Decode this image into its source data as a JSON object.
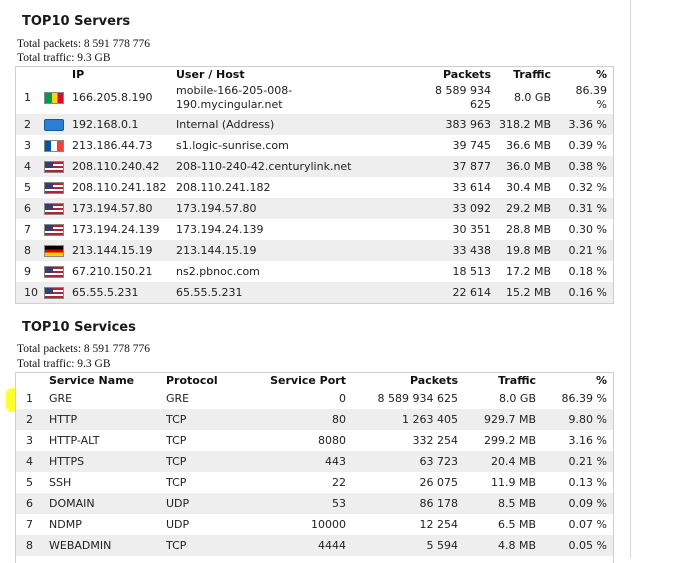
{
  "servers": {
    "title": "TOP10 Servers",
    "total_packets": "Total packets: 8 591 778 776",
    "total_traffic": "Total traffic: 9.3 GB",
    "headers": {
      "ip": "IP",
      "host": "User / Host",
      "packets": "Packets",
      "traffic": "Traffic",
      "pct": "%"
    },
    "rows": [
      {
        "n": "1",
        "flag": "flag-wl",
        "ip": "166.205.8.190",
        "host1": "mobile-166-205-008-",
        "host2": "190.mycingular.net",
        "packets1": "8 589 934",
        "packets2": "625",
        "traffic": "8.0 GB",
        "pct1": "86.39",
        "pct2": "%"
      },
      {
        "n": "2",
        "flag": "flag-lan",
        "ip": "192.168.0.1",
        "host": "Internal (Address)",
        "packets": "383 963",
        "traffic": "318.2 MB",
        "pct": "3.36 %"
      },
      {
        "n": "3",
        "flag": "flag-fr",
        "ip": "213.186.44.73",
        "host": "s1.logic-sunrise.com",
        "packets": "39 745",
        "traffic": "36.6 MB",
        "pct": "0.39 %"
      },
      {
        "n": "4",
        "flag": "flag-us",
        "ip": "208.110.240.42",
        "host": "208-110-240-42.centurylink.net",
        "packets": "37 877",
        "traffic": "36.0 MB",
        "pct": "0.38 %"
      },
      {
        "n": "5",
        "flag": "flag-us",
        "ip": "208.110.241.182",
        "host": "208.110.241.182",
        "packets": "33 614",
        "traffic": "30.4 MB",
        "pct": "0.32 %"
      },
      {
        "n": "6",
        "flag": "flag-us",
        "ip": "173.194.57.80",
        "host": "173.194.57.80",
        "packets": "33 092",
        "traffic": "29.2 MB",
        "pct": "0.31 %"
      },
      {
        "n": "7",
        "flag": "flag-us",
        "ip": "173.194.24.139",
        "host": "173.194.24.139",
        "packets": "30 351",
        "traffic": "28.8 MB",
        "pct": "0.30 %"
      },
      {
        "n": "8",
        "flag": "flag-de",
        "ip": "213.144.15.19",
        "host": "213.144.15.19",
        "packets": "33 438",
        "traffic": "19.8 MB",
        "pct": "0.21 %"
      },
      {
        "n": "9",
        "flag": "flag-us",
        "ip": "67.210.150.21",
        "host": "ns2.pbnoc.com",
        "packets": "18 513",
        "traffic": "17.2 MB",
        "pct": "0.18 %"
      },
      {
        "n": "10",
        "flag": "flag-us",
        "ip": "65.55.5.231",
        "host": "65.55.5.231",
        "packets": "22 614",
        "traffic": "15.2 MB",
        "pct": "0.16 %"
      }
    ]
  },
  "services": {
    "title": "TOP10 Services",
    "total_packets": "Total packets: 8 591 778 776",
    "total_traffic": "Total traffic: 9.3 GB",
    "headers": {
      "name": "Service Name",
      "proto": "Protocol",
      "port": "Service Port",
      "packets": "Packets",
      "traffic": "Traffic",
      "pct": "%"
    },
    "rows": [
      {
        "n": "1",
        "name": "GRE",
        "proto": "GRE",
        "port": "0",
        "packets": "8 589 934 625",
        "traffic": "8.0 GB",
        "pct": "86.39 %"
      },
      {
        "n": "2",
        "name": "HTTP",
        "proto": "TCP",
        "port": "80",
        "packets": "1 263 405",
        "traffic": "929.7 MB",
        "pct": "9.80 %"
      },
      {
        "n": "3",
        "name": "HTTP-ALT",
        "proto": "TCP",
        "port": "8080",
        "packets": "332 254",
        "traffic": "299.2 MB",
        "pct": "3.16 %"
      },
      {
        "n": "4",
        "name": "HTTPS",
        "proto": "TCP",
        "port": "443",
        "packets": "63 723",
        "traffic": "20.4 MB",
        "pct": "0.21 %"
      },
      {
        "n": "5",
        "name": "SSH",
        "proto": "TCP",
        "port": "22",
        "packets": "26 075",
        "traffic": "11.9 MB",
        "pct": "0.13 %"
      },
      {
        "n": "6",
        "name": "DOMAIN",
        "proto": "UDP",
        "port": "53",
        "packets": "86 178",
        "traffic": "8.5 MB",
        "pct": "0.09 %"
      },
      {
        "n": "7",
        "name": "NDMP",
        "proto": "UDP",
        "port": "10000",
        "packets": "12 254",
        "traffic": "6.5 MB",
        "pct": "0.07 %"
      },
      {
        "n": "8",
        "name": "WEBADMIN",
        "proto": "TCP",
        "port": "4444",
        "packets": "5 594",
        "traffic": "4.8 MB",
        "pct": "0.05 %"
      }
    ]
  },
  "colors": {
    "highlight": "#ffff33",
    "alt_row": "#eeeeee"
  }
}
